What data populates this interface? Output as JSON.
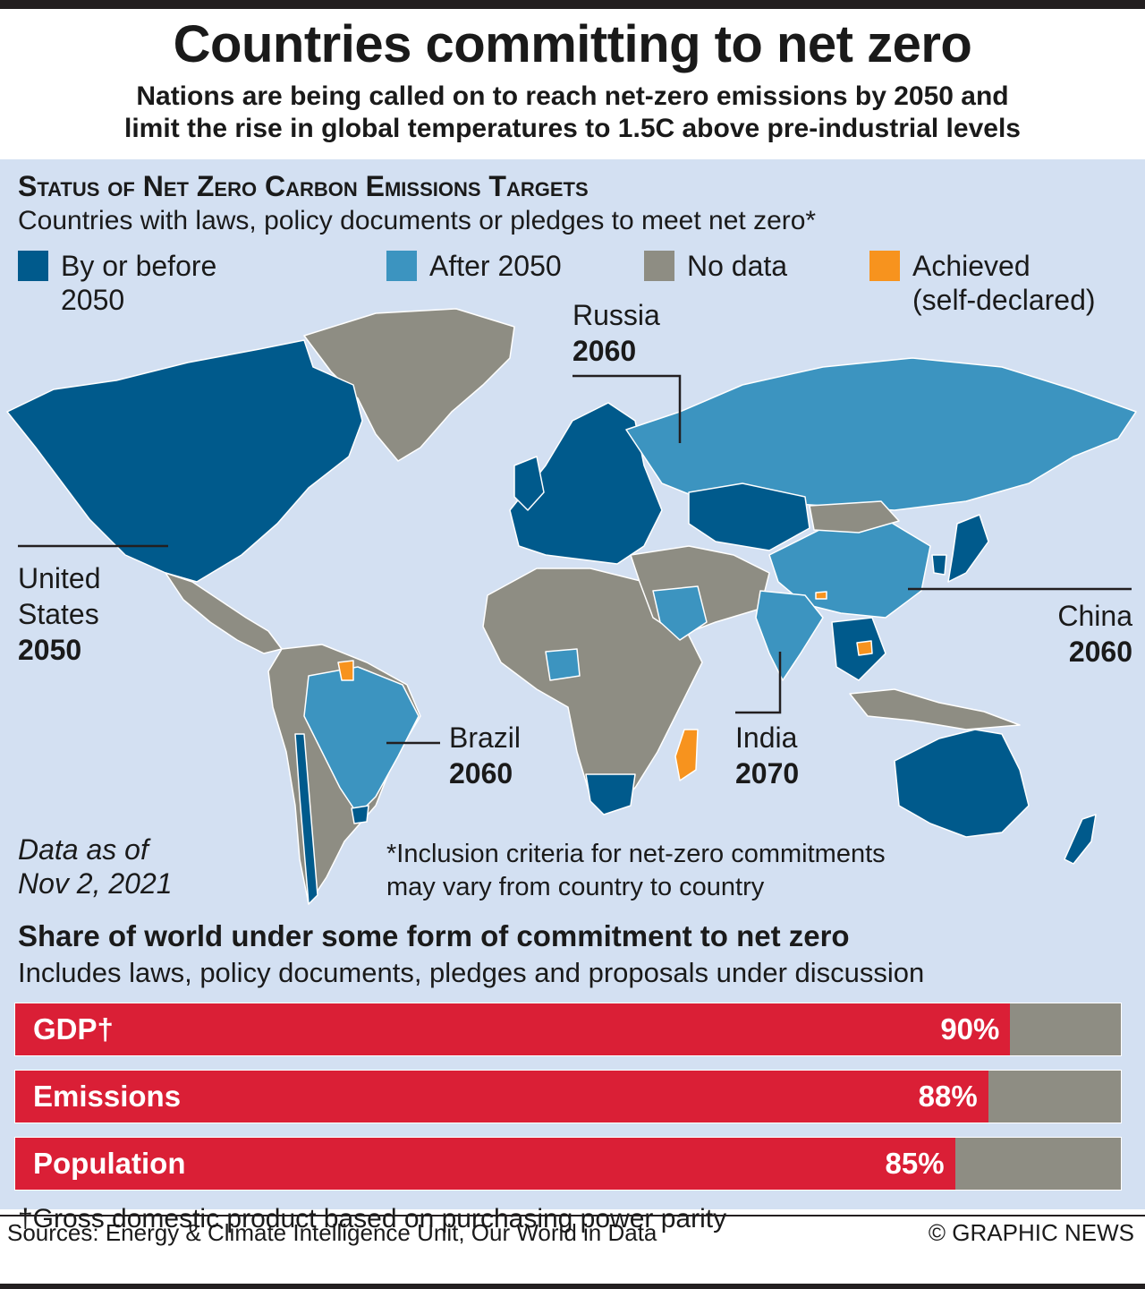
{
  "header": {
    "title": "Countries committing to net zero",
    "subtitle": "Nations are being called on to reach net-zero emissions by 2050 and\nlimit the rise in global temperatures to 1.5C above pre-industrial levels"
  },
  "map": {
    "heading": "Status of Net Zero Carbon Emissions Targets",
    "subheading": "Countries with laws, policy documents or pledges to meet net zero*",
    "legend": [
      {
        "label": "By or before 2050",
        "color": "#005a8c"
      },
      {
        "label": "After 2050",
        "color": "#3c94c0"
      },
      {
        "label": "No data",
        "color": "#8e8d83"
      },
      {
        "label": "Achieved\n(self-declared)",
        "color": "#f7931e"
      }
    ],
    "callouts": {
      "russia": {
        "name": "Russia",
        "year": "2060"
      },
      "united_states": {
        "name": "United\nStates",
        "year": "2050"
      },
      "china": {
        "name": "China",
        "year": "2060"
      },
      "brazil": {
        "name": "Brazil",
        "year": "2060"
      },
      "india": {
        "name": "India",
        "year": "2070"
      }
    },
    "date_note": "Data as of\nNov 2, 2021",
    "inclusion_note": "*Inclusion criteria for net-zero commitments\nmay vary from country to country"
  },
  "share": {
    "title": "Share of world under some form of commitment to net zero",
    "subtitle": "Includes laws, policy documents, pledges and proposals under discussion",
    "chart_data": {
      "type": "bar",
      "categories": [
        "GDP†",
        "Emissions",
        "Population"
      ],
      "values": [
        90,
        88,
        85
      ],
      "value_labels": [
        "90%",
        "88%",
        "85%"
      ],
      "ylim": [
        0,
        100
      ],
      "colors": {
        "committed": "#da1f36",
        "remainder": "#8e8d83"
      }
    },
    "footnote": "†Gross domestic product based on purchasing power parity"
  },
  "footer": {
    "sources": "Sources: Energy & Climate Intelligence Unit, Our World in Data",
    "credit": "© GRAPHIC NEWS"
  }
}
